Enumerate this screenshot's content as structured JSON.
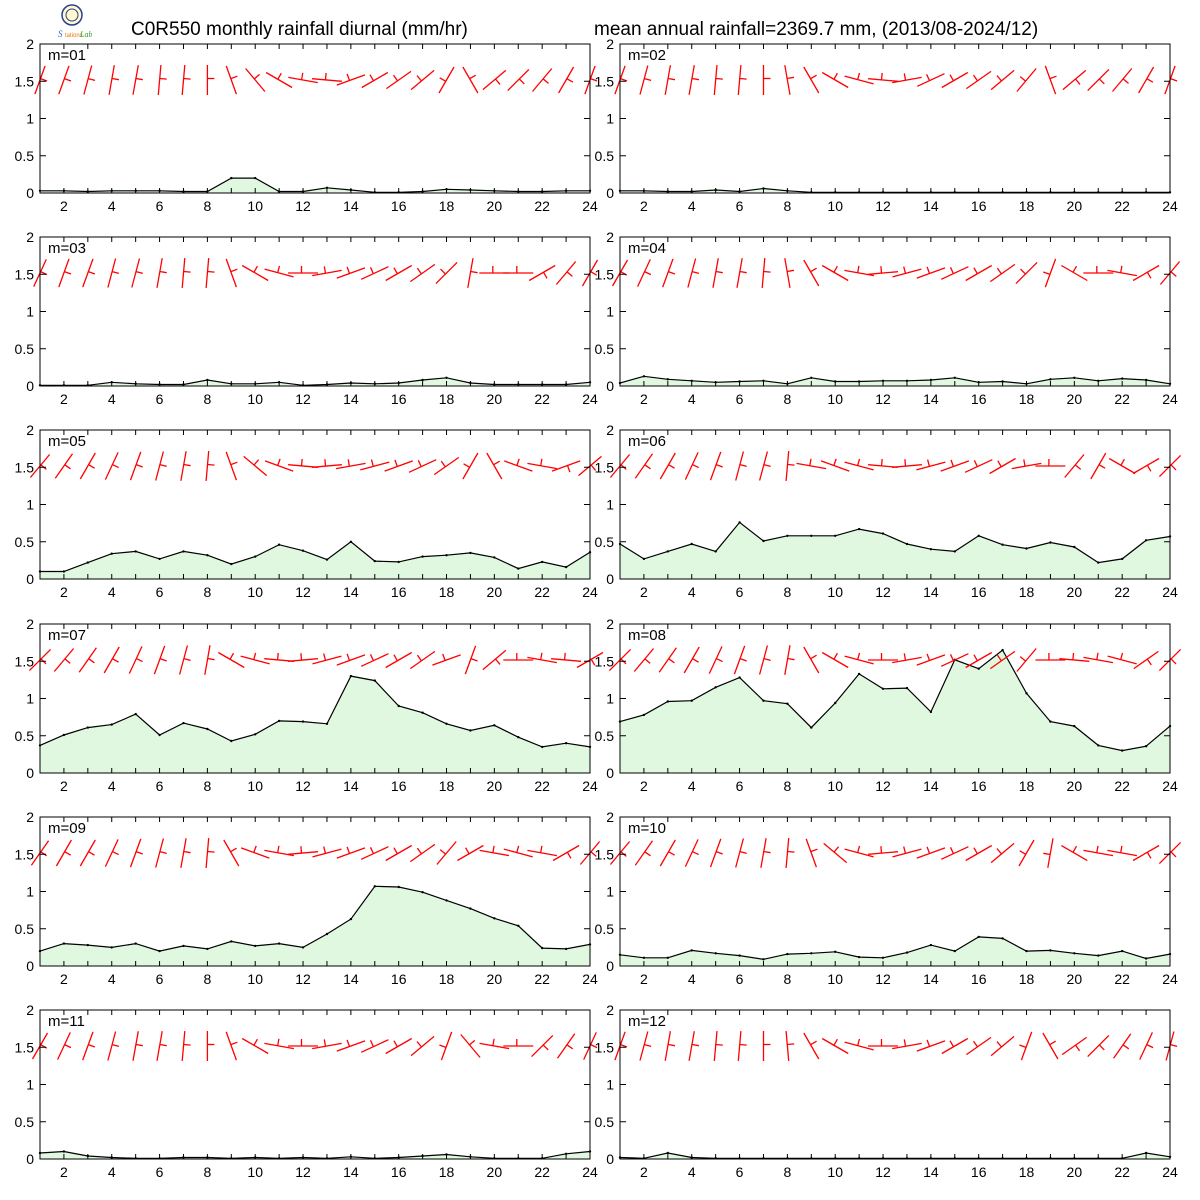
{
  "header": {
    "title_left": "C0R550 monthly rainfall diurnal (mm/hr)",
    "title_right": "mean annual rainfall=2369.7 mm, (2013/08-2024/12)"
  },
  "chart_data": {
    "type": "area",
    "x": [
      1,
      2,
      3,
      4,
      5,
      6,
      7,
      8,
      9,
      10,
      11,
      12,
      13,
      14,
      15,
      16,
      17,
      18,
      19,
      20,
      21,
      22,
      23,
      24
    ],
    "xticks": [
      2,
      4,
      6,
      8,
      10,
      12,
      14,
      16,
      18,
      20,
      22,
      24
    ],
    "xlim": [
      1,
      24
    ],
    "ylim": [
      0,
      2
    ],
    "yticks": [
      "0",
      "0.5",
      "1",
      "1.5",
      "2"
    ],
    "fill_color": "#e0f8e0",
    "line_color": "#000000",
    "wind_color": "#ff0000",
    "panels": [
      {
        "label": "m=01",
        "values": [
          0.03,
          0.03,
          0.02,
          0.03,
          0.03,
          0.03,
          0.02,
          0.02,
          0.2,
          0.2,
          0.02,
          0.02,
          0.07,
          0.04,
          0.01,
          0.01,
          0.02,
          0.05,
          0.04,
          0.03,
          0.02,
          0.02,
          0.03,
          0.03
        ],
        "wind_dir_deg": [
          20,
          20,
          15,
          10,
          10,
          5,
          5,
          0,
          340,
          320,
          300,
          280,
          275,
          250,
          240,
          235,
          230,
          210,
          330,
          50,
          45,
          40,
          30,
          20
        ]
      },
      {
        "label": "m=02",
        "values": [
          0.03,
          0.03,
          0.02,
          0.02,
          0.04,
          0.02,
          0.06,
          0.03,
          0.01,
          0.01,
          0.01,
          0.01,
          0.01,
          0.01,
          0.01,
          0.01,
          0.01,
          0.01,
          0.01,
          0.01,
          0.01,
          0.01,
          0.01,
          0.01
        ],
        "wind_dir_deg": [
          20,
          15,
          10,
          10,
          5,
          5,
          0,
          350,
          330,
          300,
          285,
          275,
          260,
          245,
          240,
          235,
          230,
          220,
          340,
          50,
          45,
          40,
          30,
          20
        ]
      },
      {
        "label": "m=03",
        "values": [
          0.01,
          0.01,
          0.01,
          0.05,
          0.03,
          0.02,
          0.02,
          0.08,
          0.03,
          0.03,
          0.05,
          0.01,
          0.02,
          0.04,
          0.03,
          0.04,
          0.08,
          0.11,
          0.04,
          0.02,
          0.02,
          0.02,
          0.02,
          0.05
        ],
        "wind_dir_deg": [
          25,
          20,
          20,
          15,
          15,
          10,
          5,
          5,
          340,
          300,
          285,
          270,
          260,
          250,
          245,
          240,
          235,
          225,
          10,
          270,
          270,
          60,
          40,
          30
        ]
      },
      {
        "label": "m=04",
        "values": [
          0.04,
          0.13,
          0.09,
          0.07,
          0.05,
          0.06,
          0.07,
          0.03,
          0.11,
          0.06,
          0.06,
          0.07,
          0.07,
          0.08,
          0.11,
          0.05,
          0.06,
          0.03,
          0.09,
          0.11,
          0.07,
          0.1,
          0.08,
          0.03
        ],
        "wind_dir_deg": [
          30,
          25,
          20,
          15,
          10,
          10,
          5,
          350,
          330,
          300,
          280,
          265,
          255,
          250,
          245,
          240,
          235,
          225,
          200,
          300,
          270,
          280,
          60,
          40
        ]
      },
      {
        "label": "m=05",
        "values": [
          0.1,
          0.1,
          0.22,
          0.34,
          0.37,
          0.27,
          0.37,
          0.32,
          0.2,
          0.3,
          0.46,
          0.38,
          0.26,
          0.5,
          0.24,
          0.23,
          0.3,
          0.32,
          0.35,
          0.29,
          0.14,
          0.23,
          0.16,
          0.36
        ],
        "wind_dir_deg": [
          40,
          35,
          30,
          25,
          20,
          15,
          10,
          5,
          340,
          310,
          290,
          275,
          265,
          260,
          255,
          250,
          245,
          235,
          210,
          330,
          290,
          280,
          70,
          50
        ]
      },
      {
        "label": "m=06",
        "values": [
          0.47,
          0.27,
          0.37,
          0.47,
          0.37,
          0.76,
          0.51,
          0.58,
          0.58,
          0.58,
          0.67,
          0.61,
          0.47,
          0.4,
          0.37,
          0.58,
          0.46,
          0.41,
          0.49,
          0.43,
          0.22,
          0.27,
          0.52,
          0.57
        ],
        "wind_dir_deg": [
          40,
          35,
          30,
          25,
          20,
          15,
          15,
          5,
          280,
          290,
          285,
          275,
          265,
          255,
          250,
          245,
          240,
          260,
          270,
          40,
          30,
          300,
          60,
          45
        ]
      },
      {
        "label": "m=07",
        "values": [
          0.37,
          0.51,
          0.61,
          0.65,
          0.79,
          0.51,
          0.67,
          0.59,
          0.43,
          0.52,
          0.7,
          0.69,
          0.66,
          1.3,
          1.24,
          0.9,
          0.81,
          0.66,
          0.57,
          0.64,
          0.48,
          0.35,
          0.4,
          0.35
        ],
        "wind_dir_deg": [
          45,
          40,
          35,
          30,
          25,
          20,
          15,
          10,
          300,
          285,
          275,
          265,
          255,
          250,
          245,
          240,
          235,
          250,
          20,
          50,
          270,
          280,
          275,
          60
        ]
      },
      {
        "label": "m=08",
        "values": [
          0.69,
          0.78,
          0.96,
          0.97,
          1.15,
          1.28,
          0.97,
          0.93,
          0.61,
          0.94,
          1.33,
          1.13,
          1.14,
          0.82,
          1.52,
          1.4,
          1.65,
          1.07,
          0.69,
          0.63,
          0.37,
          0.3,
          0.36,
          0.63
        ],
        "wind_dir_deg": [
          45,
          40,
          35,
          30,
          25,
          20,
          15,
          10,
          330,
          300,
          285,
          270,
          260,
          250,
          245,
          240,
          235,
          220,
          270,
          275,
          280,
          285,
          55,
          45
        ]
      },
      {
        "label": "m=09",
        "values": [
          0.2,
          0.3,
          0.28,
          0.25,
          0.3,
          0.2,
          0.27,
          0.23,
          0.33,
          0.27,
          0.3,
          0.25,
          0.43,
          0.63,
          1.07,
          1.06,
          0.99,
          0.88,
          0.77,
          0.64,
          0.54,
          0.24,
          0.23,
          0.29
        ],
        "wind_dir_deg": [
          35,
          30,
          30,
          25,
          20,
          15,
          10,
          5,
          330,
          290,
          280,
          265,
          255,
          250,
          245,
          240,
          235,
          220,
          240,
          280,
          285,
          280,
          60,
          40
        ]
      },
      {
        "label": "m=10",
        "values": [
          0.15,
          0.11,
          0.11,
          0.21,
          0.17,
          0.14,
          0.09,
          0.16,
          0.17,
          0.19,
          0.12,
          0.11,
          0.18,
          0.28,
          0.2,
          0.39,
          0.37,
          0.2,
          0.21,
          0.17,
          0.14,
          0.2,
          0.1,
          0.16
        ],
        "wind_dir_deg": [
          40,
          35,
          30,
          25,
          20,
          15,
          10,
          5,
          340,
          310,
          285,
          265,
          255,
          250,
          245,
          240,
          230,
          210,
          190,
          300,
          280,
          280,
          60,
          45
        ]
      },
      {
        "label": "m=11",
        "values": [
          0.08,
          0.1,
          0.04,
          0.02,
          0.01,
          0.01,
          0.02,
          0.02,
          0.01,
          0.02,
          0.01,
          0.02,
          0.01,
          0.03,
          0.01,
          0.02,
          0.04,
          0.06,
          0.03,
          0.01,
          0.01,
          0.01,
          0.07,
          0.1
        ],
        "wind_dir_deg": [
          30,
          25,
          20,
          15,
          10,
          10,
          5,
          0,
          340,
          300,
          280,
          270,
          260,
          250,
          245,
          240,
          230,
          200,
          320,
          280,
          270,
          45,
          35,
          25
        ]
      },
      {
        "label": "m=12",
        "values": [
          0.02,
          0.01,
          0.08,
          0.02,
          0.01,
          0.01,
          0.01,
          0.01,
          0.01,
          0.01,
          0.01,
          0.01,
          0.01,
          0.01,
          0.01,
          0.01,
          0.01,
          0.01,
          0.01,
          0.01,
          0.01,
          0.01,
          0.08,
          0.03
        ],
        "wind_dir_deg": [
          20,
          15,
          10,
          10,
          5,
          5,
          0,
          355,
          330,
          300,
          285,
          270,
          260,
          250,
          240,
          235,
          230,
          200,
          330,
          55,
          45,
          35,
          25,
          15
        ]
      }
    ]
  }
}
